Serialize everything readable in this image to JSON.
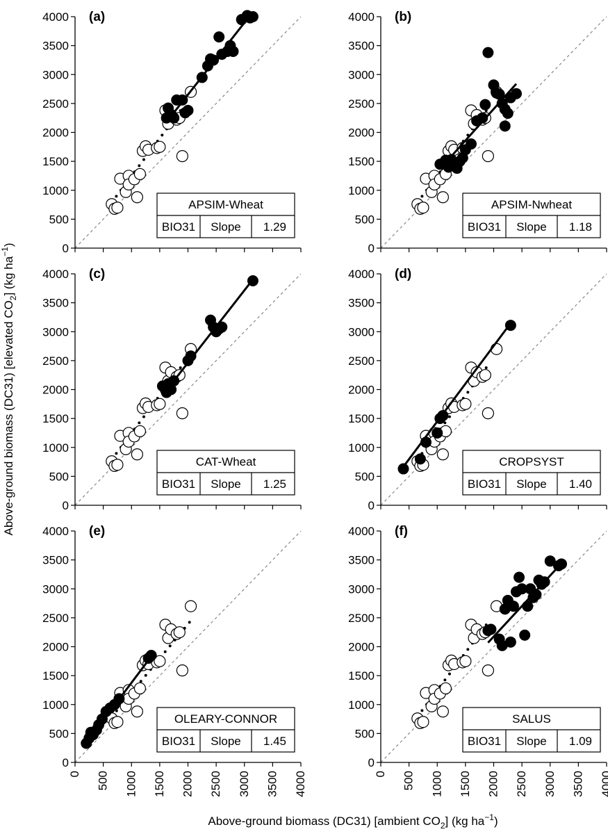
{
  "figure": {
    "xlabel_main": "Above-ground biomass (DC31) [ambient CO",
    "xlabel_sub": "2",
    "xlabel_tail": "] (kg ha",
    "xlabel_sup": "−1",
    "xlabel_end": ")",
    "ylabel_main": "Above-ground biomass (DC31) [elevated CO",
    "ylabel_sub": "2",
    "ylabel_tail": "] (kg ha",
    "ylabel_sup": "−1",
    "ylabel_end": ")"
  },
  "colors": {
    "observed": "#ffffff",
    "simulated": "#000000",
    "one_to_one": "#888888"
  },
  "chart_data": [
    {
      "type": "scatter",
      "label": "(a)",
      "model": "APSIM-Wheat",
      "dataset": "BIO31",
      "stat_name": "Slope",
      "stat_value": "1.29",
      "xlim": [
        0,
        4000
      ],
      "ylim": [
        0,
        4000
      ],
      "xticks": [
        "0",
        "500",
        "1000",
        "1500",
        "2000",
        "2500",
        "3000",
        "3500",
        "4000"
      ],
      "yticks": [
        "0",
        "500",
        "1000",
        "1500",
        "2000",
        "2500",
        "3000",
        "3500",
        "4000"
      ],
      "observed_fit": [
        [
          650,
          790
        ],
        [
          1900,
          2420
        ]
      ],
      "simulated_fit": [
        [
          1620,
          2180
        ],
        [
          3100,
          4020
        ]
      ],
      "simulated": [
        [
          1650,
          2420
        ],
        [
          1700,
          2300
        ],
        [
          1620,
          2250
        ],
        [
          1800,
          2560
        ],
        [
          1900,
          2560
        ],
        [
          2000,
          2380
        ],
        [
          1950,
          2340
        ],
        [
          1750,
          2250
        ],
        [
          2250,
          2950
        ],
        [
          2350,
          3150
        ],
        [
          2400,
          3270
        ],
        [
          2450,
          3250
        ],
        [
          2550,
          3650
        ],
        [
          2600,
          3350
        ],
        [
          2700,
          3400
        ],
        [
          2750,
          3500
        ],
        [
          2800,
          3400
        ],
        [
          2950,
          3950
        ],
        [
          3050,
          4020
        ],
        [
          3150,
          4000
        ],
        [
          3100,
          3980
        ]
      ]
    },
    {
      "type": "scatter",
      "label": "(b)",
      "model": "APSIM-Nwheat",
      "dataset": "BIO31",
      "stat_name": "Slope",
      "stat_value": "1.18",
      "xlim": [
        0,
        4000
      ],
      "ylim": [
        0,
        4000
      ],
      "xticks": [
        "0",
        "500",
        "1000",
        "1500",
        "2000",
        "2500",
        "3000",
        "3500",
        "4000"
      ],
      "yticks": [
        "0",
        "500",
        "1000",
        "1500",
        "2000",
        "2500",
        "3000",
        "3500",
        "4000"
      ],
      "observed_fit": [
        [
          650,
          790
        ],
        [
          1900,
          2420
        ]
      ],
      "simulated_fit": [
        [
          1050,
          1370
        ],
        [
          2400,
          2840
        ]
      ],
      "simulated": [
        [
          1050,
          1450
        ],
        [
          1150,
          1520
        ],
        [
          1200,
          1400
        ],
        [
          1250,
          1530
        ],
        [
          1300,
          1470
        ],
        [
          1350,
          1380
        ],
        [
          1400,
          1500
        ],
        [
          1450,
          1560
        ],
        [
          1500,
          1700
        ],
        [
          1600,
          1800
        ],
        [
          1700,
          2200
        ],
        [
          1800,
          2250
        ],
        [
          1900,
          3380
        ],
        [
          1850,
          2480
        ],
        [
          2000,
          2820
        ],
        [
          2050,
          2680
        ],
        [
          2100,
          2660
        ],
        [
          2150,
          2500
        ],
        [
          2200,
          2400
        ],
        [
          2250,
          2330
        ],
        [
          2300,
          2600
        ],
        [
          2400,
          2670
        ],
        [
          2200,
          2110
        ]
      ]
    },
    {
      "type": "scatter",
      "label": "(c)",
      "model": "CAT-Wheat",
      "dataset": "BIO31",
      "stat_name": "Slope",
      "stat_value": "1.25",
      "xlim": [
        0,
        4000
      ],
      "ylim": [
        0,
        4000
      ],
      "xticks": [
        "0",
        "500",
        "1000",
        "1500",
        "2000",
        "2500",
        "3000",
        "3500",
        "4000"
      ],
      "yticks": [
        "0",
        "500",
        "1000",
        "1500",
        "2000",
        "2500",
        "3000",
        "3500",
        "4000"
      ],
      "observed_fit": [
        [
          650,
          790
        ],
        [
          1900,
          2420
        ]
      ],
      "simulated_fit": [
        [
          1550,
          1900
        ],
        [
          3100,
          3840
        ]
      ],
      "simulated": [
        [
          1550,
          2060
        ],
        [
          1600,
          2000
        ],
        [
          1620,
          1950
        ],
        [
          1650,
          2100
        ],
        [
          1700,
          2000
        ],
        [
          1750,
          2150
        ],
        [
          2000,
          2500
        ],
        [
          2050,
          2580
        ],
        [
          2400,
          3200
        ],
        [
          2450,
          3080
        ],
        [
          2500,
          3000
        ],
        [
          2550,
          3050
        ],
        [
          2600,
          3080
        ],
        [
          3150,
          3880
        ]
      ]
    },
    {
      "type": "scatter",
      "label": "(d)",
      "model": "CROPSYST",
      "dataset": "BIO31",
      "stat_name": "Slope",
      "stat_value": "1.40",
      "xlim": [
        0,
        4000
      ],
      "ylim": [
        0,
        4000
      ],
      "xticks": [
        "0",
        "500",
        "1000",
        "1500",
        "2000",
        "2500",
        "3000",
        "3500",
        "4000"
      ],
      "yticks": [
        "0",
        "500",
        "1000",
        "1500",
        "2000",
        "2500",
        "3000",
        "3500",
        "4000"
      ],
      "observed_fit": [
        [
          650,
          790
        ],
        [
          1900,
          2420
        ]
      ],
      "simulated_fit": [
        [
          350,
          600
        ],
        [
          2280,
          3120
        ]
      ],
      "simulated": [
        [
          400,
          630
        ],
        [
          700,
          800
        ],
        [
          800,
          1090
        ],
        [
          1000,
          1250
        ],
        [
          1050,
          1500
        ],
        [
          1100,
          1550
        ],
        [
          2300,
          3110
        ]
      ]
    },
    {
      "type": "scatter",
      "label": "(e)",
      "model": "OLEARY-CONNOR",
      "dataset": "BIO31",
      "stat_name": "Slope",
      "stat_value": "1.45",
      "xlim": [
        0,
        4000
      ],
      "ylim": [
        0,
        4000
      ],
      "xticks": [
        "0",
        "500",
        "1000",
        "1500",
        "2000",
        "2500",
        "3000",
        "3500",
        "4000"
      ],
      "yticks": [
        "0",
        "500",
        "1000",
        "1500",
        "2000",
        "2500",
        "3000",
        "3500",
        "4000"
      ],
      "observed_fit": [
        [
          650,
          790
        ],
        [
          2050,
          2450
        ]
      ],
      "simulated_fit": [
        [
          200,
          340
        ],
        [
          1380,
          1870
        ]
      ],
      "simulated": [
        [
          200,
          330
        ],
        [
          250,
          420
        ],
        [
          280,
          520
        ],
        [
          320,
          480
        ],
        [
          380,
          560
        ],
        [
          420,
          650
        ],
        [
          480,
          750
        ],
        [
          550,
          880
        ],
        [
          620,
          940
        ],
        [
          700,
          1000
        ],
        [
          780,
          1100
        ],
        [
          1300,
          1800
        ],
        [
          1350,
          1850
        ]
      ]
    },
    {
      "type": "scatter",
      "label": "(f)",
      "model": "SALUS",
      "dataset": "BIO31",
      "stat_name": "Slope",
      "stat_value": "1.09",
      "xlim": [
        0,
        4000
      ],
      "ylim": [
        0,
        4000
      ],
      "xticks": [
        "0",
        "500",
        "1000",
        "1500",
        "2000",
        "2500",
        "3000",
        "3500",
        "4000"
      ],
      "yticks": [
        "0",
        "500",
        "1000",
        "1500",
        "2000",
        "2500",
        "3000",
        "3500",
        "4000"
      ],
      "observed_fit": [
        [
          650,
          790
        ],
        [
          1900,
          2420
        ]
      ],
      "simulated_fit": [
        [
          1900,
          2070
        ],
        [
          3200,
          3440
        ]
      ],
      "simulated": [
        [
          1900,
          2280
        ],
        [
          1950,
          2300
        ],
        [
          2100,
          2130
        ],
        [
          2150,
          2020
        ],
        [
          2200,
          2650
        ],
        [
          2250,
          2800
        ],
        [
          2300,
          2080
        ],
        [
          2350,
          2700
        ],
        [
          2400,
          2950
        ],
        [
          2450,
          3200
        ],
        [
          2500,
          3000
        ],
        [
          2550,
          2200
        ],
        [
          2600,
          2700
        ],
        [
          2650,
          3000
        ],
        [
          2700,
          2850
        ],
        [
          2750,
          2900
        ],
        [
          2800,
          3150
        ],
        [
          2850,
          3080
        ],
        [
          2900,
          3120
        ],
        [
          3000,
          3480
        ],
        [
          3150,
          3400
        ],
        [
          3200,
          3430
        ]
      ]
    }
  ],
  "observed_common": [
    [
      650,
      760
    ],
    [
      700,
      680
    ],
    [
      750,
      700
    ],
    [
      800,
      1200
    ],
    [
      900,
      970
    ],
    [
      950,
      1250
    ],
    [
      950,
      1100
    ],
    [
      1050,
      1190
    ],
    [
      1100,
      880
    ],
    [
      1150,
      1280
    ],
    [
      1200,
      1680
    ],
    [
      1250,
      1760
    ],
    [
      1300,
      1700
    ],
    [
      1450,
      1730
    ],
    [
      1500,
      1750
    ],
    [
      1600,
      2380
    ],
    [
      1650,
      2150
    ],
    [
      1700,
      2300
    ],
    [
      1800,
      2220
    ],
    [
      1850,
      2250
    ],
    [
      1900,
      1590
    ],
    [
      2050,
      2700
    ]
  ]
}
